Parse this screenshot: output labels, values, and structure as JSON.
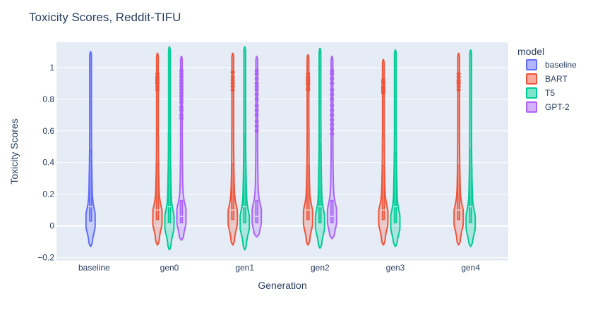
{
  "chart_data": {
    "type": "violin",
    "title": "Toxicity Scores, Reddit-TIFU",
    "xlabel": "Generation",
    "ylabel": "Toxicity Scores",
    "categories": [
      "baseline",
      "gen0",
      "gen1",
      "gen2",
      "gen3",
      "gen4"
    ],
    "y_ticks": [
      -0.2,
      0,
      0.2,
      0.4,
      0.6,
      0.8,
      1
    ],
    "y_tick_labels": [
      "−0.2",
      "0",
      "0.2",
      "0.4",
      "0.6",
      "0.8",
      "1"
    ],
    "ylim": [
      -0.22,
      1.16
    ],
    "grid": true,
    "legend": {
      "title": "model",
      "placement": "top-right"
    },
    "series": [
      {
        "name": "baseline",
        "color": "#636efa",
        "violins": [
          {
            "category": "baseline",
            "min": -0.13,
            "max": 1.1,
            "q1": 0.03,
            "median": 0.12,
            "q3": 0.48,
            "mode": 0.03,
            "outliers": []
          }
        ]
      },
      {
        "name": "BART",
        "color": "#ef553b",
        "violins": [
          {
            "category": "gen0",
            "min": -0.12,
            "max": 1.09,
            "q1": 0.04,
            "median": 0.1,
            "q3": 0.39,
            "mode": 0.05,
            "outliers": [
              0.86,
              0.88,
              0.9,
              0.91,
              0.92,
              0.93,
              0.94,
              0.96
            ]
          },
          {
            "category": "gen1",
            "min": -0.12,
            "max": 1.09,
            "q1": 0.04,
            "median": 0.1,
            "q3": 0.39,
            "mode": 0.05,
            "outliers": [
              0.86,
              0.88,
              0.9,
              0.92,
              0.94,
              0.97
            ]
          },
          {
            "category": "gen2",
            "min": -0.12,
            "max": 1.08,
            "q1": 0.04,
            "median": 0.1,
            "q3": 0.38,
            "mode": 0.05,
            "outliers": [
              0.86,
              0.87,
              0.89,
              0.9,
              0.91,
              0.92,
              0.93,
              0.94,
              0.96
            ]
          },
          {
            "category": "gen3",
            "min": -0.12,
            "max": 1.05,
            "q1": 0.04,
            "median": 0.1,
            "q3": 0.38,
            "mode": 0.05,
            "outliers": [
              0.84,
              0.85,
              0.86,
              0.87,
              0.88,
              0.9,
              0.91,
              0.92
            ]
          },
          {
            "category": "gen4",
            "min": -0.12,
            "max": 1.09,
            "q1": 0.04,
            "median": 0.1,
            "q3": 0.38,
            "mode": 0.05,
            "outliers": [
              0.86,
              0.88,
              0.9,
              0.91,
              0.92,
              0.94,
              0.96
            ]
          }
        ]
      },
      {
        "name": "T5",
        "color": "#00cc96",
        "violins": [
          {
            "category": "gen0",
            "min": -0.15,
            "max": 1.13,
            "q1": 0.02,
            "median": 0.12,
            "q3": 0.58,
            "mode": 0.02,
            "outliers": []
          },
          {
            "category": "gen1",
            "min": -0.15,
            "max": 1.13,
            "q1": 0.02,
            "median": 0.12,
            "q3": 0.57,
            "mode": 0.02,
            "outliers": []
          },
          {
            "category": "gen2",
            "min": -0.14,
            "max": 1.12,
            "q1": 0.02,
            "median": 0.12,
            "q3": 0.52,
            "mode": 0.02,
            "outliers": []
          },
          {
            "category": "gen3",
            "min": -0.13,
            "max": 1.11,
            "q1": 0.02,
            "median": 0.12,
            "q3": 0.46,
            "mode": 0.02,
            "outliers": []
          },
          {
            "category": "gen4",
            "min": -0.13,
            "max": 1.11,
            "q1": 0.02,
            "median": 0.12,
            "q3": 0.48,
            "mode": 0.02,
            "outliers": []
          }
        ]
      },
      {
        "name": "GPT-2",
        "color": "#ab63fa",
        "violins": [
          {
            "category": "gen0",
            "min": -0.09,
            "max": 1.07,
            "q1": 0.02,
            "median": 0.06,
            "q3": 0.16,
            "mode": 0.06,
            "outliers": [
              0.68,
              0.7,
              0.73,
              0.75,
              0.78,
              0.8,
              0.82,
              0.84,
              0.86,
              0.88,
              0.9,
              0.92,
              0.94,
              0.96,
              0.98
            ]
          },
          {
            "category": "gen1",
            "min": -0.07,
            "max": 1.07,
            "q1": 0.02,
            "median": 0.06,
            "q3": 0.16,
            "mode": 0.06,
            "outliers": [
              0.6,
              0.63,
              0.66,
              0.7,
              0.73,
              0.76,
              0.8,
              0.83,
              0.86,
              0.88,
              0.9,
              0.93,
              0.96,
              0.98
            ]
          },
          {
            "category": "gen2",
            "min": -0.08,
            "max": 1.07,
            "q1": 0.02,
            "median": 0.06,
            "q3": 0.16,
            "mode": 0.06,
            "outliers": [
              0.58,
              0.61,
              0.64,
              0.67,
              0.7,
              0.73,
              0.76,
              0.8,
              0.83,
              0.86,
              0.9,
              0.93,
              0.96,
              0.98
            ]
          }
        ]
      }
    ]
  }
}
